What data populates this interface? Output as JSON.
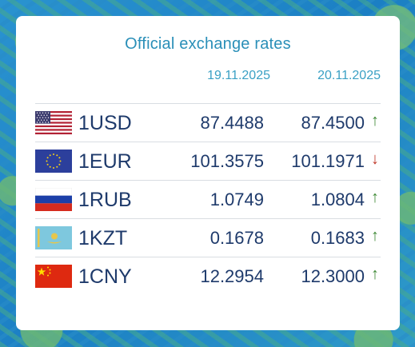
{
  "title": "Official exchange rates",
  "dates": [
    "19.11.2025",
    "20.11.2025"
  ],
  "rates": [
    {
      "code": "1USD",
      "flag": "us-flag-icon",
      "prev": "87.4488",
      "curr": "87.4500",
      "trend": "up",
      "trend_symbol": "↑"
    },
    {
      "code": "1EUR",
      "flag": "eu-flag-icon",
      "prev": "101.3575",
      "curr": "101.1971",
      "trend": "down",
      "trend_symbol": "↓"
    },
    {
      "code": "1RUB",
      "flag": "ru-flag-icon",
      "prev": "1.0749",
      "curr": "1.0804",
      "trend": "up",
      "trend_symbol": "↑"
    },
    {
      "code": "1KZT",
      "flag": "kz-flag-icon",
      "prev": "0.1678",
      "curr": "0.1683",
      "trend": "up",
      "trend_symbol": "↑"
    },
    {
      "code": "1CNY",
      "flag": "cn-flag-icon",
      "prev": "12.2954",
      "curr": "12.3000",
      "trend": "up",
      "trend_symbol": "↑"
    }
  ],
  "colors": {
    "title": "#2a8fb8",
    "value": "#1e3a6b",
    "up": "#3f8a36",
    "down": "#c0392b"
  }
}
